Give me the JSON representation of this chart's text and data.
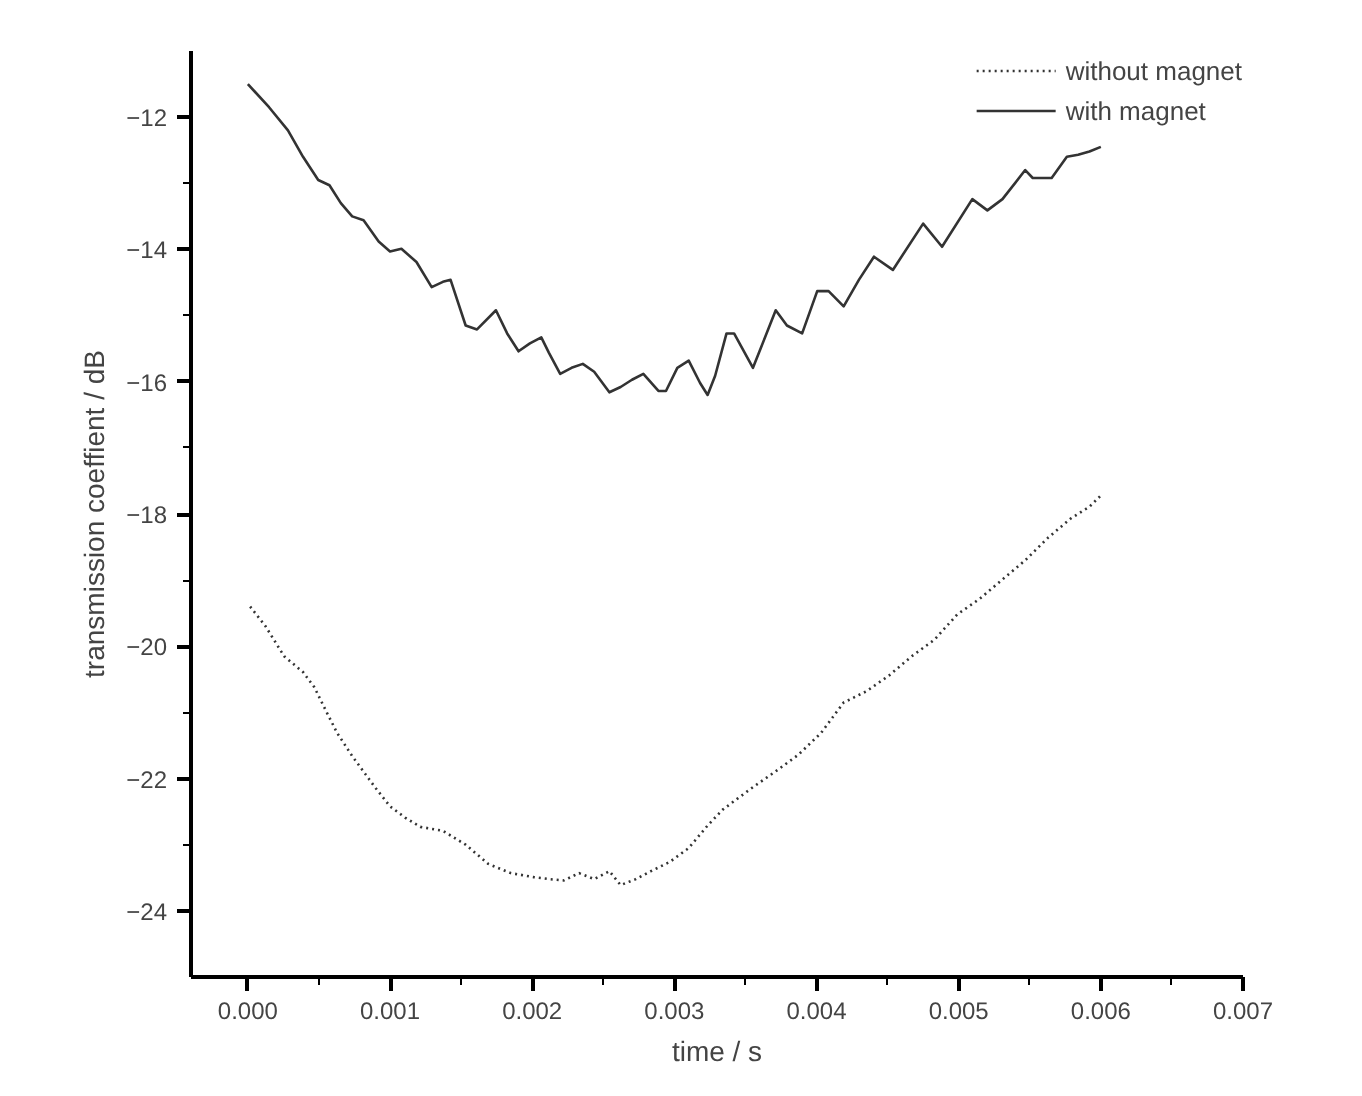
{
  "chart_data": {
    "type": "line",
    "xlabel": "time / s",
    "ylabel": "transmission coeffient / dB",
    "xlim": [
      -0.0004,
      0.007
    ],
    "ylim": [
      -25,
      -11
    ],
    "xticks": [
      {
        "value": 0,
        "label": "0.000"
      },
      {
        "value": 0.001,
        "label": "0.001"
      },
      {
        "value": 0.002,
        "label": "0.002"
      },
      {
        "value": 0.003,
        "label": "0.003"
      },
      {
        "value": 0.004,
        "label": "0.004"
      },
      {
        "value": 0.005,
        "label": "0.005"
      },
      {
        "value": 0.006,
        "label": "0.006"
      },
      {
        "value": 0.007,
        "label": "0.007"
      }
    ],
    "yticks": [
      -24,
      -22,
      -20,
      -18,
      -16,
      -14,
      -12
    ],
    "grid": false,
    "legend": "top right",
    "marker": "none",
    "series": [
      {
        "name": "without magnet",
        "color": "#333333",
        "line_style": "dotted",
        "x": [
          1.6e-05,
          0.000122,
          0.000255,
          0.000388,
          0.000468,
          0.000548,
          0.000628,
          0.000734,
          0.000894,
          0.001,
          0.001106,
          0.001213,
          0.001372,
          0.001532,
          0.001691,
          0.001851,
          0.002011,
          0.002117,
          0.002223,
          0.00233,
          0.002436,
          0.002543,
          0.002622,
          0.002729,
          0.002835,
          0.002968,
          0.003101,
          0.003234,
          0.00334,
          0.003446,
          0.003553,
          0.003713,
          0.003872,
          0.004032,
          0.004191,
          0.004351,
          0.004511,
          0.00467,
          0.00483,
          0.004989,
          0.005149,
          0.005308,
          0.005468,
          0.005628,
          0.005787,
          0.00592,
          0.006
        ],
        "values": [
          -19.4,
          -19.69,
          -20.15,
          -20.39,
          -20.62,
          -20.97,
          -21.31,
          -21.66,
          -22.13,
          -22.42,
          -22.59,
          -22.73,
          -22.79,
          -23.0,
          -23.29,
          -23.43,
          -23.49,
          -23.52,
          -23.54,
          -23.43,
          -23.52,
          -23.4,
          -23.61,
          -23.52,
          -23.4,
          -23.26,
          -23.05,
          -22.71,
          -22.47,
          -22.3,
          -22.13,
          -21.89,
          -21.64,
          -21.31,
          -20.85,
          -20.68,
          -20.44,
          -20.15,
          -19.9,
          -19.52,
          -19.28,
          -18.99,
          -18.7,
          -18.36,
          -18.07,
          -17.89,
          -17.72
        ]
      },
      {
        "name": "with magnet",
        "color": "#333333",
        "line_style": "solid",
        "x": [
          0,
          0.000149,
          0.000282,
          0.000388,
          0.000495,
          0.000574,
          0.000654,
          0.000734,
          0.000814,
          0.00092,
          0.001,
          0.00108,
          0.001186,
          0.001293,
          0.001372,
          0.001426,
          0.001532,
          0.001612,
          0.001745,
          0.001824,
          0.001904,
          0.001984,
          0.002064,
          0.002117,
          0.002197,
          0.002277,
          0.002356,
          0.002436,
          0.002543,
          0.002622,
          0.002702,
          0.002782,
          0.002888,
          0.002941,
          0.003021,
          0.003101,
          0.003181,
          0.003234,
          0.003287,
          0.003367,
          0.00342,
          0.003553,
          0.003713,
          0.003792,
          0.003899,
          0.004005,
          0.004085,
          0.004191,
          0.004298,
          0.004404,
          0.004537,
          0.00475,
          0.004883,
          0.005096,
          0.005202,
          0.005308,
          0.005468,
          0.005521,
          0.005654,
          0.005761,
          0.00584,
          0.00592,
          0.006
        ],
        "values": [
          -11.5,
          -11.85,
          -12.2,
          -12.6,
          -12.95,
          -13.03,
          -13.3,
          -13.5,
          -13.56,
          -13.88,
          -14.03,
          -13.99,
          -14.19,
          -14.57,
          -14.49,
          -14.46,
          -15.15,
          -15.21,
          -14.92,
          -15.27,
          -15.54,
          -15.42,
          -15.33,
          -15.56,
          -15.88,
          -15.79,
          -15.73,
          -15.85,
          -16.16,
          -16.08,
          -15.97,
          -15.88,
          -16.14,
          -16.14,
          -15.79,
          -15.68,
          -16.02,
          -16.2,
          -15.91,
          -15.27,
          -15.27,
          -15.79,
          -14.92,
          -15.15,
          -15.27,
          -14.63,
          -14.63,
          -14.86,
          -14.46,
          -14.11,
          -14.31,
          -13.61,
          -13.96,
          -13.24,
          -13.41,
          -13.24,
          -12.8,
          -12.92,
          -12.92,
          -12.6,
          -12.57,
          -12.52,
          -12.45
        ]
      }
    ]
  }
}
